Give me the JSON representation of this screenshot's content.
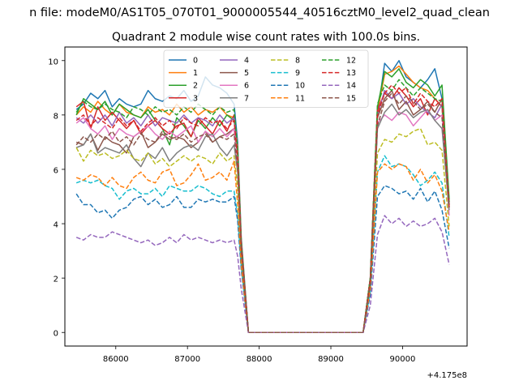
{
  "figure": {
    "suptitle": "n file: modeM0/AS1T05_070T01_9000005544_40516cztM0_level2_quad_clean",
    "offset_text": "+4.175e8"
  },
  "chart_data": {
    "type": "line",
    "title": "Quadrant 2 module wise count rates with 100.0s bins.",
    "xlabel": "",
    "ylabel": "",
    "x_offset": 417500000,
    "xlim": [
      85290,
      90900
    ],
    "ylim": [
      -0.5,
      10.5
    ],
    "x_ticks": [
      86000,
      87000,
      88000,
      89000,
      90000
    ],
    "x_tick_labels": [
      "86000",
      "87000",
      "88000",
      "89000",
      "90000"
    ],
    "y_ticks": [
      0,
      2,
      4,
      6,
      8,
      10
    ],
    "y_tick_labels": [
      "0",
      "2",
      "4",
      "6",
      "8",
      "10"
    ],
    "grid": false,
    "legend": {
      "placement": "top-center",
      "ncol": 4
    },
    "x": [
      85450,
      85550,
      85650,
      85750,
      85850,
      85950,
      86050,
      86150,
      86250,
      86350,
      86450,
      86550,
      86650,
      86750,
      86850,
      86950,
      87050,
      87150,
      87250,
      87350,
      87450,
      87550,
      87650,
      87700,
      87750,
      87850,
      87950,
      88050,
      88150,
      88250,
      88350,
      88450,
      88550,
      88650,
      88750,
      88850,
      88950,
      89050,
      89150,
      89250,
      89350,
      89450,
      89550,
      89650,
      89750,
      89850,
      89950,
      90050,
      90150,
      90250,
      90350,
      90450,
      90550,
      90650
    ],
    "series": [
      {
        "name": "0",
        "color": "#1f77b4",
        "dash": "solid",
        "values": [
          8.2,
          8.4,
          8.8,
          8.6,
          8.9,
          8.3,
          8.6,
          8.4,
          8.3,
          8.4,
          8.9,
          8.6,
          8.5,
          8.7,
          8.6,
          8.9,
          8.5,
          8.7,
          9.4,
          9.1,
          9.0,
          8.8,
          8.4,
          7.0,
          3.5,
          0,
          0,
          0,
          0,
          0,
          0,
          0,
          0,
          0,
          0,
          0,
          0,
          0,
          0,
          0,
          0,
          0,
          2.0,
          8.0,
          9.9,
          9.6,
          10.0,
          9.4,
          9.2,
          9.0,
          9.3,
          9.7,
          8.6,
          4.8
        ]
      },
      {
        "name": "1",
        "color": "#ff7f0e",
        "dash": "solid",
        "values": [
          8.0,
          8.3,
          8.1,
          8.5,
          8.2,
          8.0,
          8.4,
          8.1,
          8.0,
          7.9,
          8.3,
          8.1,
          8.2,
          8.0,
          8.4,
          8.1,
          8.3,
          8.0,
          8.2,
          8.1,
          8.3,
          8.0,
          7.9,
          6.8,
          3.4,
          0,
          0,
          0,
          0,
          0,
          0,
          0,
          0,
          0,
          0,
          0,
          0,
          0,
          0,
          0,
          0,
          0,
          1.9,
          8.1,
          9.5,
          9.6,
          9.8,
          9.5,
          9.2,
          9.0,
          8.9,
          8.6,
          8.3,
          4.7
        ]
      },
      {
        "name": "2",
        "color": "#2ca02c",
        "dash": "solid",
        "values": [
          8.0,
          8.6,
          8.4,
          8.2,
          8.5,
          8.0,
          8.4,
          8.2,
          8.0,
          7.9,
          8.2,
          7.8,
          7.5,
          6.9,
          7.9,
          7.6,
          7.2,
          7.8,
          7.5,
          7.9,
          7.6,
          8.0,
          7.8,
          6.6,
          3.3,
          0,
          0,
          0,
          0,
          0,
          0,
          0,
          0,
          0,
          0,
          0,
          0,
          0,
          0,
          0,
          0,
          0,
          2.0,
          8.3,
          9.6,
          9.4,
          9.7,
          9.2,
          9.0,
          9.3,
          9.1,
          8.7,
          9.1,
          4.9
        ]
      },
      {
        "name": "3",
        "color": "#d62728",
        "dash": "solid",
        "values": [
          8.3,
          8.5,
          7.5,
          8.3,
          7.8,
          8.1,
          7.8,
          7.5,
          7.8,
          7.3,
          7.6,
          7.8,
          7.5,
          7.3,
          7.6,
          7.7,
          7.2,
          7.9,
          7.6,
          7.3,
          7.8,
          7.4,
          8.0,
          6.4,
          3.2,
          0,
          0,
          0,
          0,
          0,
          0,
          0,
          0,
          0,
          0,
          0,
          0,
          0,
          0,
          0,
          0,
          0,
          2.0,
          8.2,
          8.8,
          8.6,
          9.0,
          8.7,
          8.3,
          8.6,
          8.0,
          8.6,
          8.3,
          4.7
        ]
      },
      {
        "name": "4",
        "color": "#9467bd",
        "dash": "solid",
        "values": [
          7.9,
          7.7,
          8.0,
          7.7,
          8.0,
          7.6,
          8.1,
          7.7,
          7.9,
          7.6,
          8.0,
          7.6,
          7.9,
          7.8,
          7.7,
          8.0,
          7.7,
          7.9,
          7.8,
          7.6,
          8.0,
          7.7,
          7.9,
          6.5,
          3.3,
          0,
          0,
          0,
          0,
          0,
          0,
          0,
          0,
          0,
          0,
          0,
          0,
          0,
          0,
          0,
          0,
          0,
          1.9,
          8.0,
          8.9,
          8.6,
          8.8,
          8.4,
          8.6,
          8.3,
          8.1,
          7.9,
          8.4,
          4.6
        ]
      },
      {
        "name": "5",
        "color": "#8c564b",
        "dash": "solid",
        "values": [
          7.0,
          6.9,
          7.3,
          6.7,
          7.2,
          7.0,
          6.9,
          6.6,
          7.2,
          7.4,
          6.8,
          7.0,
          7.3,
          7.1,
          7.2,
          7.1,
          6.8,
          7.0,
          7.4,
          7.0,
          7.2,
          7.3,
          7.5,
          6.3,
          3.2,
          0,
          0,
          0,
          0,
          0,
          0,
          0,
          0,
          0,
          0,
          0,
          0,
          0,
          0,
          0,
          0,
          0,
          1.8,
          7.9,
          8.6,
          8.9,
          8.2,
          8.5,
          8.0,
          8.2,
          8.5,
          8.1,
          8.6,
          4.7
        ]
      },
      {
        "name": "6",
        "color": "#e377c2",
        "dash": "solid",
        "values": [
          7.7,
          7.9,
          7.5,
          7.3,
          7.6,
          7.1,
          7.5,
          7.3,
          7.2,
          7.4,
          7.6,
          7.3,
          7.1,
          7.4,
          7.2,
          7.4,
          7.6,
          7.0,
          7.4,
          7.2,
          7.5,
          7.2,
          7.5,
          6.3,
          3.2,
          0,
          0,
          0,
          0,
          0,
          0,
          0,
          0,
          0,
          0,
          0,
          0,
          0,
          0,
          0,
          0,
          0,
          1.9,
          7.7,
          8.0,
          7.8,
          8.1,
          8.0,
          7.6,
          7.9,
          8.2,
          7.8,
          8.0,
          4.3
        ]
      },
      {
        "name": "7",
        "color": "#7f7f7f",
        "dash": "solid",
        "values": [
          6.8,
          6.9,
          7.3,
          6.6,
          6.8,
          6.7,
          6.6,
          6.9,
          6.4,
          6.1,
          6.6,
          6.4,
          6.8,
          6.3,
          6.6,
          6.8,
          6.9,
          6.7,
          7.2,
          7.3,
          6.8,
          6.5,
          6.9,
          5.9,
          3.0,
          0,
          0,
          0,
          0,
          0,
          0,
          0,
          0,
          0,
          0,
          0,
          0,
          0,
          0,
          0,
          0,
          0,
          1.8,
          7.5,
          8.1,
          8.4,
          8.0,
          8.2,
          7.9,
          8.1,
          8.2,
          7.8,
          7.5,
          4.5
        ]
      },
      {
        "name": "8",
        "color": "#bcbd22",
        "dash": "dashed",
        "values": [
          6.8,
          6.3,
          6.7,
          6.5,
          6.6,
          6.4,
          6.5,
          6.7,
          6.4,
          6.3,
          6.6,
          6.2,
          6.4,
          6.1,
          6.3,
          6.5,
          6.3,
          6.5,
          6.4,
          6.2,
          6.6,
          6.3,
          6.5,
          5.3,
          2.8,
          0,
          0,
          0,
          0,
          0,
          0,
          0,
          0,
          0,
          0,
          0,
          0,
          0,
          0,
          0,
          0,
          0,
          1.7,
          6.6,
          7.1,
          7.0,
          7.3,
          7.2,
          7.4,
          7.5,
          6.9,
          7.0,
          6.7,
          3.9
        ]
      },
      {
        "name": "9",
        "color": "#17becf",
        "dash": "dashed",
        "values": [
          5.5,
          5.6,
          5.5,
          5.6,
          5.4,
          5.3,
          4.9,
          5.2,
          5.3,
          5.1,
          5.1,
          5.3,
          5.0,
          5.4,
          5.3,
          5.2,
          5.2,
          5.4,
          5.3,
          5.1,
          5.0,
          5.2,
          5.2,
          4.3,
          2.4,
          0,
          0,
          0,
          0,
          0,
          0,
          0,
          0,
          0,
          0,
          0,
          0,
          0,
          0,
          0,
          0,
          0,
          1.5,
          5.9,
          6.5,
          6.1,
          6.2,
          6.1,
          5.8,
          5.4,
          5.6,
          5.9,
          5.5,
          3.5
        ]
      },
      {
        "name": "10",
        "color": "#1f77b4",
        "dash": "dashed",
        "values": [
          5.1,
          4.7,
          4.7,
          4.4,
          4.5,
          4.2,
          4.5,
          4.6,
          4.9,
          5.0,
          4.7,
          4.9,
          4.6,
          4.7,
          5.0,
          4.6,
          4.6,
          4.9,
          4.8,
          4.9,
          4.8,
          4.8,
          5.0,
          4.1,
          2.3,
          0,
          0,
          0,
          0,
          0,
          0,
          0,
          0,
          0,
          0,
          0,
          0,
          0,
          0,
          0,
          0,
          0,
          1.4,
          5.0,
          5.4,
          5.3,
          5.1,
          5.2,
          4.9,
          5.3,
          4.8,
          5.2,
          4.5,
          3.1
        ]
      },
      {
        "name": "11",
        "color": "#ff7f0e",
        "dash": "dashed",
        "values": [
          5.7,
          5.6,
          5.8,
          5.7,
          5.4,
          5.7,
          5.4,
          5.3,
          5.7,
          5.9,
          5.6,
          5.5,
          5.9,
          6.0,
          5.4,
          5.5,
          5.8,
          6.2,
          5.6,
          5.7,
          5.9,
          5.6,
          6.3,
          4.7,
          2.5,
          0,
          0,
          0,
          0,
          0,
          0,
          0,
          0,
          0,
          0,
          0,
          0,
          0,
          0,
          0,
          0,
          0,
          1.6,
          5.9,
          6.2,
          6.0,
          6.2,
          6.1,
          5.6,
          6.0,
          5.5,
          5.8,
          5.2,
          3.7
        ]
      },
      {
        "name": "12",
        "color": "#2ca02c",
        "dash": "dashed",
        "values": [
          8.1,
          8.5,
          8.3,
          8.2,
          8.4,
          8.2,
          8.1,
          7.9,
          8.3,
          8.2,
          8.0,
          8.3,
          8.1,
          8.2,
          8.0,
          8.3,
          8.1,
          8.4,
          8.2,
          8.0,
          8.3,
          8.1,
          8.2,
          6.7,
          3.3,
          0,
          0,
          0,
          0,
          0,
          0,
          0,
          0,
          0,
          0,
          0,
          0,
          0,
          0,
          0,
          0,
          0,
          2.0,
          8.4,
          9.1,
          8.9,
          9.3,
          9.0,
          8.7,
          9.0,
          8.8,
          8.6,
          8.5,
          4.8
        ]
      },
      {
        "name": "13",
        "color": "#d62728",
        "dash": "dashed",
        "values": [
          7.8,
          8.0,
          7.6,
          7.9,
          7.7,
          7.5,
          7.9,
          7.6,
          7.8,
          7.4,
          7.7,
          7.9,
          7.6,
          7.8,
          7.5,
          7.9,
          7.7,
          7.6,
          7.9,
          7.7,
          7.8,
          7.5,
          7.8,
          6.4,
          3.2,
          0,
          0,
          0,
          0,
          0,
          0,
          0,
          0,
          0,
          0,
          0,
          0,
          0,
          0,
          0,
          0,
          0,
          1.9,
          8.0,
          8.8,
          9.1,
          8.8,
          9.0,
          8.4,
          8.8,
          8.5,
          8.3,
          8.6,
          4.6
        ]
      },
      {
        "name": "14",
        "color": "#9467bd",
        "dash": "dashed",
        "values": [
          3.5,
          3.4,
          3.6,
          3.5,
          3.5,
          3.7,
          3.6,
          3.5,
          3.4,
          3.3,
          3.4,
          3.2,
          3.3,
          3.5,
          3.3,
          3.6,
          3.4,
          3.5,
          3.4,
          3.3,
          3.4,
          3.3,
          3.4,
          2.8,
          1.6,
          0,
          0,
          0,
          0,
          0,
          0,
          0,
          0,
          0,
          0,
          0,
          0,
          0,
          0,
          0,
          0,
          0,
          1.0,
          3.6,
          4.3,
          4.0,
          4.2,
          3.9,
          4.1,
          3.9,
          4.0,
          4.2,
          3.7,
          2.5
        ]
      },
      {
        "name": "15",
        "color": "#8c564b",
        "dash": "dashed",
        "values": [
          6.9,
          7.2,
          7.0,
          7.3,
          7.1,
          7.4,
          7.0,
          7.2,
          6.9,
          7.3,
          7.1,
          7.0,
          7.4,
          7.2,
          7.1,
          7.3,
          7.0,
          7.2,
          7.3,
          7.0,
          7.2,
          7.1,
          7.3,
          6.0,
          3.0,
          0,
          0,
          0,
          0,
          0,
          0,
          0,
          0,
          0,
          0,
          0,
          0,
          0,
          0,
          0,
          0,
          0,
          1.8,
          7.6,
          8.5,
          8.8,
          8.4,
          8.7,
          8.5,
          8.2,
          8.4,
          8.1,
          7.9,
          4.6
        ]
      }
    ]
  }
}
